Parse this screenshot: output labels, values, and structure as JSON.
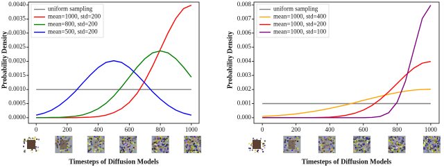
{
  "chart_data": [
    {
      "type": "line",
      "xlabel": "Timesteps of Diffusion Models",
      "ylabel": "Probability Density",
      "x": [
        0,
        50,
        100,
        150,
        200,
        250,
        300,
        350,
        400,
        450,
        500,
        550,
        600,
        650,
        700,
        750,
        800,
        850,
        900,
        950,
        1000
      ],
      "xlim": [
        -50,
        1050
      ],
      "ylim": [
        -0.0002,
        0.0041
      ],
      "xticks": [
        0,
        200,
        400,
        600,
        800,
        1000
      ],
      "yticks": [
        {
          "value": 0,
          "label": "0.0000"
        },
        {
          "value": 0.0005,
          "label": "0.0005"
        },
        {
          "value": 0.001,
          "label": "0.0010"
        },
        {
          "value": 0.0015,
          "label": "0.0015"
        },
        {
          "value": 0.002,
          "label": "0.0020"
        },
        {
          "value": 0.0025,
          "label": "0.0025"
        },
        {
          "value": 0.003,
          "label": "0.0030"
        },
        {
          "value": 0.0035,
          "label": "0.0035"
        },
        {
          "value": 0.004,
          "label": "0.0040"
        }
      ],
      "legend": "upper left",
      "grid": false,
      "series": [
        {
          "name": "uniform sampling",
          "color": "#808080",
          "values": [
            0.001,
            0.001,
            0.001,
            0.001,
            0.001,
            0.001,
            0.001,
            0.001,
            0.001,
            0.001,
            0.001,
            0.001,
            0.001,
            0.001,
            0.001,
            0.001,
            0.001,
            0.001,
            0.001,
            0.001,
            0.001
          ]
        },
        {
          "name": "mean=1000, std=200",
          "color": "#ff0000",
          "values": [
            0,
            0,
            0,
            0,
            0,
            0,
            1e-05,
            2e-05,
            4e-05,
            9e-05,
            0.00018,
            0.00032,
            0.00054,
            0.00086,
            0.0013,
            0.00183,
            0.00242,
            0.00301,
            0.00352,
            0.00387,
            0.00399
          ]
        },
        {
          "name": "mean=800, std=200",
          "color": "#008000",
          "values": [
            0,
            0,
            1e-05,
            1e-05,
            3e-05,
            5e-05,
            0.0001,
            0.00019,
            0.00032,
            0.00051,
            0.00077,
            0.00109,
            0.00144,
            0.00179,
            0.00209,
            0.0023,
            0.00237,
            0.0023,
            0.00209,
            0.00179,
            0.00144
          ]
        },
        {
          "name": "mean=500, std=200",
          "color": "#0000ff",
          "values": [
            9e-05,
            0.00016,
            0.00027,
            0.00044,
            0.00066,
            0.00092,
            0.00123,
            0.00152,
            0.00178,
            0.00196,
            0.00202,
            0.00196,
            0.00178,
            0.00152,
            0.00123,
            0.00092,
            0.00066,
            0.00044,
            0.00027,
            0.00016,
            9e-05
          ]
        }
      ]
    },
    {
      "type": "line",
      "xlabel": "Timesteps of Diffusion Models",
      "ylabel": "Probability Density",
      "x": [
        0,
        50,
        100,
        150,
        200,
        250,
        300,
        350,
        400,
        450,
        500,
        550,
        600,
        650,
        700,
        750,
        800,
        850,
        900,
        950,
        1000
      ],
      "xlim": [
        -50,
        1050
      ],
      "ylim": [
        -0.0004,
        0.0082
      ],
      "xticks": [
        0,
        200,
        400,
        600,
        800,
        1000
      ],
      "yticks": [
        {
          "value": 0,
          "label": "0.000"
        },
        {
          "value": 0.001,
          "label": "0.001"
        },
        {
          "value": 0.002,
          "label": "0.002"
        },
        {
          "value": 0.003,
          "label": "0.003"
        },
        {
          "value": 0.004,
          "label": "0.004"
        },
        {
          "value": 0.005,
          "label": "0.005"
        },
        {
          "value": 0.006,
          "label": "0.006"
        },
        {
          "value": 0.007,
          "label": "0.007"
        },
        {
          "value": 0.008,
          "label": "0.008"
        }
      ],
      "legend": "upper left",
      "grid": false,
      "series": [
        {
          "name": "uniform sampling",
          "color": "#808080",
          "values": [
            0.001,
            0.001,
            0.001,
            0.001,
            0.001,
            0.001,
            0.001,
            0.001,
            0.001,
            0.001,
            0.001,
            0.001,
            0.001,
            0.001,
            0.001,
            0.001,
            0.001,
            0.001,
            0.001,
            0.001,
            0.001
          ]
        },
        {
          "name": "mean=1000, std=400",
          "color": "#ffa500",
          "values": [
            9e-05,
            0.00012,
            0.00016,
            0.00021,
            0.00027,
            0.00035,
            0.00044,
            0.00054,
            0.00066,
            0.00079,
            0.00092,
            0.00107,
            0.00123,
            0.00138,
            0.00152,
            0.00166,
            0.00178,
            0.00188,
            0.00196,
            0.002,
            0.00202
          ]
        },
        {
          "name": "mean=1000, std=200",
          "color": "#ff0000",
          "values": [
            0,
            0,
            0,
            0,
            0,
            0,
            1e-05,
            2e-05,
            4e-05,
            9e-05,
            0.00018,
            0.00032,
            0.00054,
            0.00086,
            0.0013,
            0.00183,
            0.00242,
            0.00301,
            0.00352,
            0.00387,
            0.00399
          ]
        },
        {
          "name": "mean=1000, std=100",
          "color": "#800080",
          "values": [
            0,
            0,
            0,
            0,
            0,
            0,
            0,
            0,
            0,
            0,
            0,
            0,
            0,
            2e-05,
            9e-05,
            0.00035,
            0.00108,
            0.00259,
            0.00484,
            0.00704,
            0.00798
          ]
        }
      ]
    }
  ]
}
